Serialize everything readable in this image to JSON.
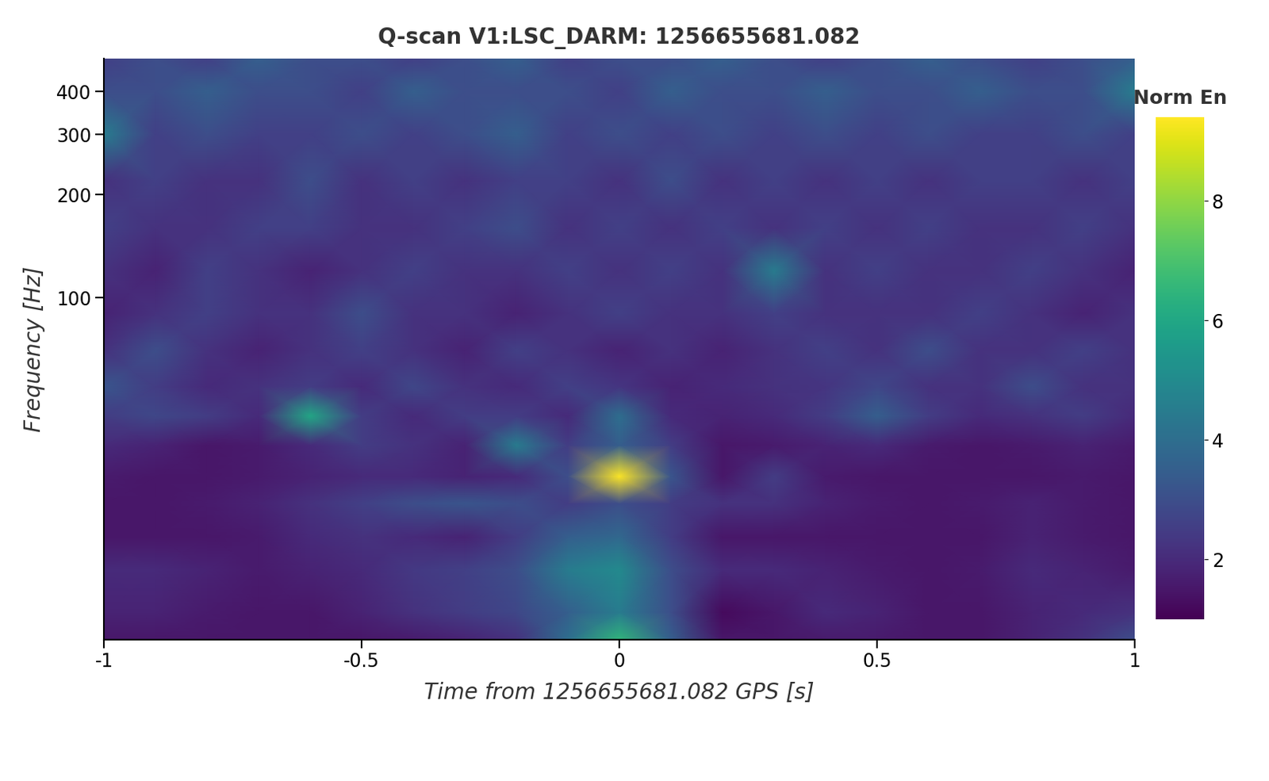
{
  "chart_data": {
    "type": "heatmap",
    "title": "Q-scan V1:LSC_DARM: 1256655681.082",
    "x_label": "Time from 1256655681.082 GPS [s]",
    "y_label": "Frequency [Hz]",
    "log": "y",
    "xlim": [
      -1,
      1
    ],
    "xticks": [
      -1,
      -0.5,
      0,
      0.5,
      1
    ],
    "ylim": [
      10,
      500
    ],
    "yticks": [
      100,
      200,
      300,
      400
    ],
    "x": [
      -1,
      -0.9,
      -0.8,
      -0.7,
      -0.6,
      -0.5,
      -0.4,
      -0.3,
      -0.2,
      -0.1,
      0,
      0.1,
      0.2,
      0.3,
      0.4,
      0.5,
      0.6,
      0.7,
      0.8,
      0.9,
      1
    ],
    "y": [
      10,
      12,
      16,
      20,
      25,
      30,
      37,
      45,
      55,
      70,
      90,
      120,
      160,
      220,
      300,
      400,
      500
    ],
    "cells": [
      [
        1.5,
        1.5,
        1.5,
        1.5,
        1.5,
        1.5,
        1.6,
        1.8,
        2.2,
        4.0,
        6.5,
        3.5,
        1.5,
        1.5,
        1.6,
        1.6,
        1.5,
        1.5,
        1.8,
        2.2,
        3.0
      ],
      [
        1.8,
        1.8,
        1.6,
        1.5,
        1.5,
        1.8,
        2.2,
        2.5,
        2.8,
        3.5,
        4.5,
        3.0,
        1.2,
        1.5,
        2.0,
        1.8,
        1.5,
        1.5,
        1.8,
        2.0,
        2.2
      ],
      [
        2.0,
        2.0,
        1.8,
        1.6,
        1.8,
        2.0,
        2.4,
        2.6,
        3.0,
        4.5,
        5.0,
        3.0,
        2.0,
        2.0,
        1.8,
        1.6,
        1.5,
        1.6,
        2.0,
        1.8,
        1.6
      ],
      [
        1.5,
        1.5,
        1.5,
        1.6,
        2.0,
        2.2,
        2.0,
        1.8,
        2.5,
        3.5,
        3.8,
        2.5,
        1.5,
        1.5,
        1.5,
        1.5,
        1.5,
        1.5,
        1.8,
        1.6,
        1.5
      ],
      [
        1.5,
        1.5,
        1.6,
        1.8,
        2.2,
        2.6,
        3.0,
        3.2,
        3.0,
        2.5,
        3.0,
        2.5,
        2.2,
        2.2,
        1.8,
        1.6,
        1.5,
        1.6,
        1.8,
        1.6,
        1.5
      ],
      [
        1.6,
        1.5,
        1.5,
        1.6,
        1.8,
        2.0,
        2.0,
        1.8,
        2.0,
        3.0,
        9.4,
        3.2,
        1.5,
        2.5,
        1.6,
        1.5,
        1.5,
        1.5,
        1.5,
        1.6,
        1.5
      ],
      [
        2.0,
        1.8,
        1.5,
        1.6,
        2.0,
        2.5,
        2.2,
        1.8,
        4.5,
        2.5,
        3.5,
        2.5,
        1.5,
        1.6,
        1.8,
        2.0,
        1.6,
        1.5,
        1.6,
        1.8,
        1.6
      ],
      [
        2.5,
        2.8,
        2.5,
        2.0,
        6.0,
        2.5,
        2.0,
        2.5,
        2.5,
        2.0,
        4.0,
        2.0,
        1.8,
        2.0,
        2.5,
        3.5,
        2.5,
        2.0,
        2.2,
        2.5,
        2.0
      ],
      [
        3.2,
        2.5,
        2.0,
        2.2,
        2.5,
        2.0,
        2.8,
        2.2,
        2.0,
        2.6,
        2.3,
        1.8,
        2.0,
        2.2,
        2.3,
        2.8,
        2.2,
        2.2,
        3.0,
        2.2,
        2.2
      ],
      [
        2.2,
        3.0,
        2.2,
        1.8,
        2.2,
        2.6,
        2.2,
        1.8,
        2.6,
        2.2,
        1.8,
        2.2,
        1.8,
        2.2,
        2.6,
        2.2,
        3.0,
        2.2,
        2.2,
        2.6,
        2.2
      ],
      [
        1.8,
        2.2,
        2.6,
        2.2,
        2.2,
        3.0,
        2.2,
        2.2,
        1.8,
        2.2,
        2.6,
        2.2,
        2.2,
        2.6,
        2.2,
        2.2,
        2.2,
        2.6,
        2.2,
        1.8,
        2.2
      ],
      [
        2.2,
        1.8,
        2.6,
        2.2,
        1.8,
        2.2,
        2.6,
        2.2,
        2.2,
        2.6,
        2.2,
        2.6,
        2.2,
        4.5,
        2.2,
        2.6,
        2.2,
        2.2,
        2.6,
        2.2,
        1.8
      ],
      [
        2.6,
        2.2,
        2.2,
        2.6,
        2.6,
        2.2,
        2.2,
        2.6,
        3.0,
        2.2,
        2.6,
        2.2,
        2.6,
        2.2,
        2.6,
        2.2,
        2.6,
        2.2,
        2.2,
        2.6,
        2.2
      ],
      [
        2.2,
        2.6,
        2.2,
        2.2,
        3.0,
        2.2,
        2.6,
        2.2,
        2.6,
        2.6,
        2.2,
        3.0,
        2.2,
        2.6,
        2.2,
        2.6,
        2.2,
        2.6,
        2.6,
        2.2,
        2.6
      ],
      [
        4.5,
        2.6,
        3.0,
        2.6,
        2.6,
        3.0,
        2.6,
        3.0,
        3.5,
        2.6,
        3.0,
        2.6,
        3.0,
        2.6,
        3.0,
        2.6,
        3.0,
        2.6,
        2.6,
        3.0,
        2.6
      ],
      [
        3.0,
        3.0,
        3.5,
        3.0,
        3.0,
        2.6,
        3.5,
        3.0,
        3.0,
        3.0,
        2.6,
        3.5,
        3.0,
        3.0,
        3.5,
        3.0,
        3.0,
        3.5,
        3.0,
        3.0,
        4.5
      ],
      [
        2.6,
        3.0,
        2.6,
        3.5,
        3.0,
        3.0,
        2.6,
        3.0,
        3.5,
        2.6,
        3.0,
        3.0,
        3.5,
        3.0,
        2.6,
        3.0,
        3.5,
        3.0,
        2.6,
        3.0,
        3.5
      ]
    ],
    "color_label": "Norm En",
    "color_range": [
      1,
      9.4
    ],
    "color_ticks": [
      2,
      4,
      6,
      8
    ]
  }
}
